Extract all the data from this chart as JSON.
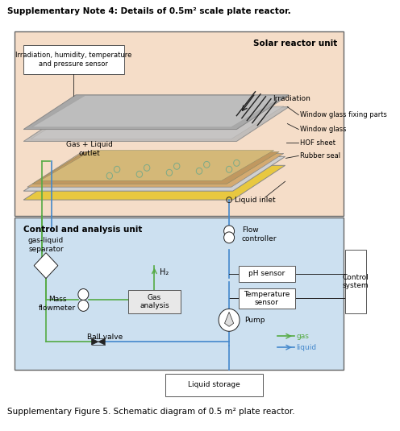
{
  "title": "Supplementary Note 4: Details of 0.5m² scale plate reactor.",
  "caption": "Supplementary Figure 5. Schematic diagram of 0.5 m² plate reactor.",
  "solar_unit_label": "Solar reactor unit",
  "sensor_box_text": "Irradiation, humidity, temperature\nand pressure sensor",
  "irradiation_text": "Irradiation",
  "gas_liquid_outlet_text": "Gas + Liquid\noutlet",
  "window_glass_fixing_text": "Window glass fixing parts",
  "window_glass_text": "Window glass",
  "hof_sheet_text": "HOF sheet",
  "rubber_seal_text": "Rubber seal",
  "liquid_inlet_text": "Liquid inlet",
  "control_unit_label": "Control and analysis unit",
  "gas_liquid_sep_text": "gas-liquid\nseparator",
  "mass_flowmeter_text": "Mass\nflowmeter",
  "h2_text": "H₂",
  "gas_analysis_text": "Gas\nanalysis",
  "ball_valve_text": "Ball valve",
  "flow_controller_text": "Flow\ncontroller",
  "ph_sensor_text": "pH sensor",
  "temperature_sensor_text": "Temperature\nsensor",
  "pump_text": "Pump",
  "gas_legend_text": "gas",
  "liquid_legend_text": "liquid",
  "control_system_text": "Control\nsystem",
  "liquid_storage_text": "Liquid storage",
  "solar_bg": "#f5ddc8",
  "control_bg": "#cce0f0",
  "box_bg": "#ffffff",
  "green_color": "#55aa44",
  "blue_color": "#4488cc",
  "dark_color": "#222222",
  "yellow_color": "#e8c840",
  "tan_color": "#d4aa70",
  "gray_color": "#aaaaaa",
  "gray_dark": "#888888"
}
